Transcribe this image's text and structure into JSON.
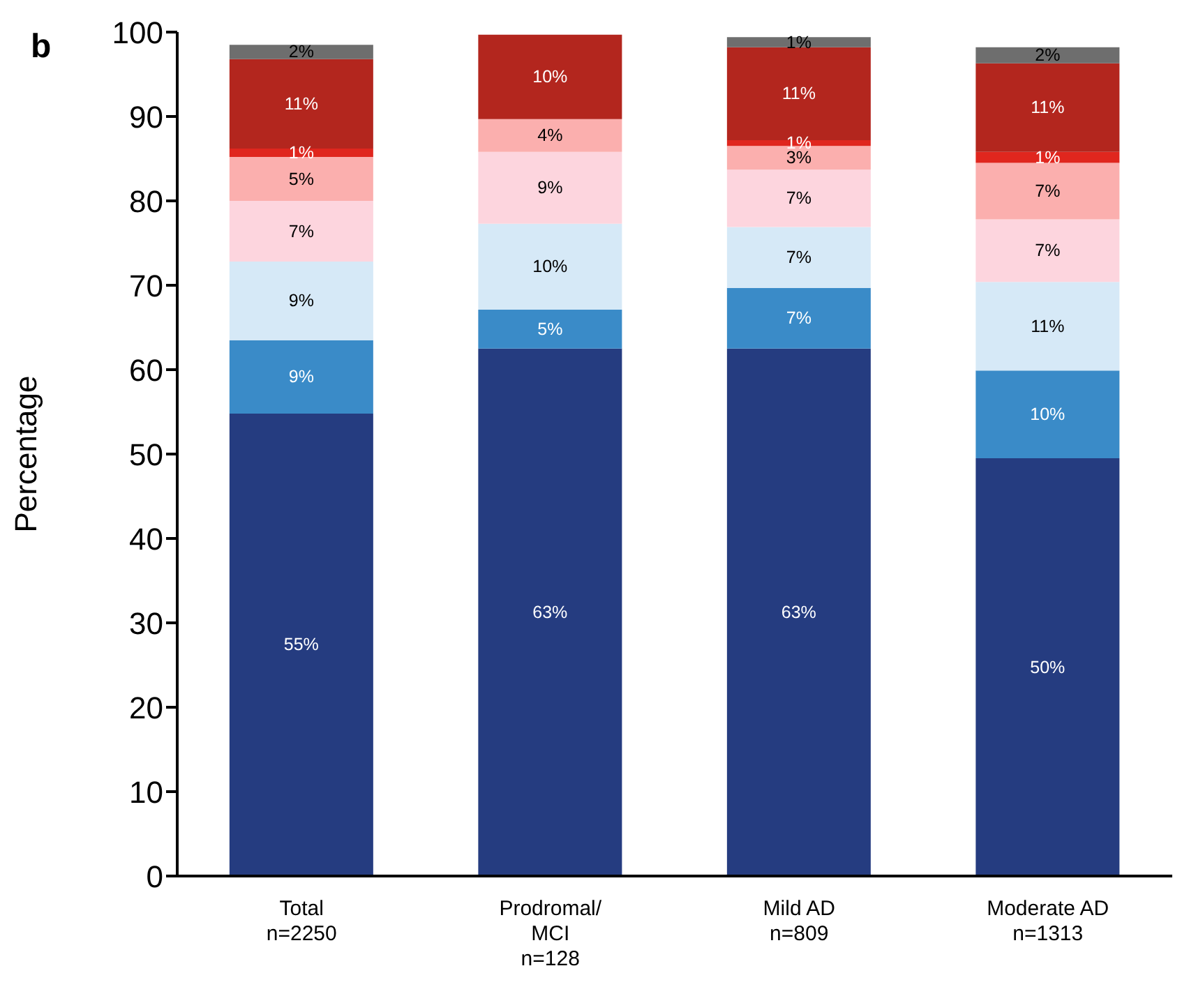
{
  "chart_data": {
    "type": "bar",
    "stacked": true,
    "ylabel": "Percentage",
    "annotations": [
      "b"
    ],
    "categories": [
      "Total\nn=2250",
      "Prodromal/\nMCI\nn=128",
      "Mild AD\nn=809",
      "Moderate AD\nn=1313"
    ],
    "ylim": [
      0,
      100
    ],
    "yticks": [
      0,
      10,
      20,
      30,
      40,
      50,
      60,
      70,
      80,
      90,
      100
    ],
    "grid": false,
    "legend": false,
    "series": [
      {
        "color": "#253c80",
        "values": [
          54.8,
          62.5,
          62.5,
          49.5
        ],
        "value_labels": [
          "55%",
          "63%",
          "63%",
          "50%"
        ]
      },
      {
        "color": "#3a8bc8",
        "values": [
          8.7,
          4.6,
          7.2,
          10.4
        ],
        "value_labels": [
          "9%",
          "5%",
          "7%",
          "10%"
        ]
      },
      {
        "color": "#d6e9f7",
        "values": [
          9.3,
          10.2,
          7.2,
          10.5
        ],
        "value_labels": [
          "9%",
          "10%",
          "7%",
          "11%"
        ]
      },
      {
        "color": "#fdd5de",
        "values": [
          7.2,
          8.5,
          6.8,
          7.4
        ],
        "value_labels": [
          "7%",
          "9%",
          "7%",
          "7%"
        ]
      },
      {
        "color": "#fbafae",
        "values": [
          5.2,
          3.9,
          2.8,
          6.7
        ],
        "value_labels": [
          "5%",
          "4%",
          "3%",
          "7%"
        ]
      },
      {
        "color": "#e0261e",
        "values": [
          1,
          null,
          0.7,
          1.3
        ],
        "value_labels": [
          "1%",
          null,
          "1%",
          "1%"
        ]
      },
      {
        "color": "#b3261e",
        "values": [
          10.6,
          10,
          11,
          10.5
        ],
        "value_labels": [
          "11%",
          "10%",
          "11%",
          "11%"
        ]
      },
      {
        "color": "#6e6e6e",
        "values": [
          1.7,
          null,
          1.2,
          1.9
        ],
        "value_labels": [
          "2%",
          null,
          "1%",
          "2%"
        ]
      }
    ]
  }
}
